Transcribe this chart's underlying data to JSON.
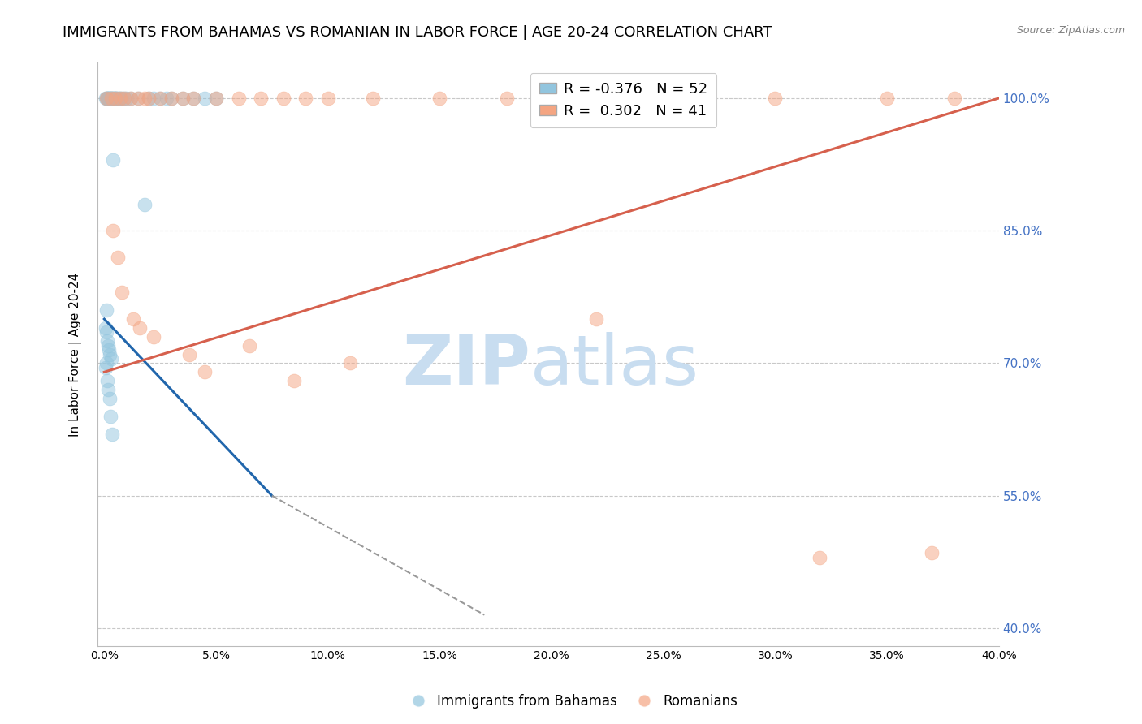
{
  "title": "IMMIGRANTS FROM BAHAMAS VS ROMANIAN IN LABOR FORCE | AGE 20-24 CORRELATION CHART",
  "source": "Source: ZipAtlas.com",
  "ylabel": "In Labor Force | Age 20-24",
  "x_tick_values": [
    0.0,
    5.0,
    10.0,
    15.0,
    20.0,
    25.0,
    30.0,
    35.0,
    40.0
  ],
  "y_tick_values": [
    40.0,
    55.0,
    70.0,
    85.0,
    100.0
  ],
  "xlim": [
    -0.3,
    40.0
  ],
  "ylim": [
    38.0,
    104.0
  ],
  "legend_items": [
    {
      "label": "R = -0.376   N = 52",
      "color": "#92c5de"
    },
    {
      "label": "R =  0.302   N = 41",
      "color": "#f4a582"
    }
  ],
  "legend_bottom": [
    "Immigrants from Bahamas",
    "Romanians"
  ],
  "bahamas_scatter_x": [
    0.05,
    0.1,
    0.12,
    0.15,
    0.18,
    0.2,
    0.22,
    0.25,
    0.28,
    0.3,
    0.32,
    0.35,
    0.38,
    0.4,
    0.42,
    0.45,
    0.48,
    0.5,
    0.55,
    0.6,
    0.65,
    0.7,
    0.8,
    0.9,
    1.0,
    1.2,
    1.5,
    1.8,
    2.0,
    2.2,
    2.5,
    2.8,
    3.0,
    3.5,
    4.0,
    4.5,
    5.0,
    0.08,
    0.06,
    0.11,
    0.14,
    0.17,
    0.21,
    0.26,
    0.33,
    0.09,
    0.07,
    0.13,
    0.16,
    0.23,
    0.29,
    0.36
  ],
  "bahamas_scatter_y": [
    100.0,
    100.0,
    100.0,
    100.0,
    100.0,
    100.0,
    100.0,
    100.0,
    100.0,
    100.0,
    100.0,
    100.0,
    100.0,
    93.0,
    100.0,
    100.0,
    100.0,
    100.0,
    100.0,
    100.0,
    100.0,
    100.0,
    100.0,
    100.0,
    100.0,
    100.0,
    100.0,
    88.0,
    100.0,
    100.0,
    100.0,
    100.0,
    100.0,
    100.0,
    100.0,
    100.0,
    100.0,
    76.0,
    74.0,
    73.5,
    72.5,
    72.0,
    71.5,
    71.0,
    70.5,
    70.0,
    69.5,
    68.0,
    67.0,
    66.0,
    64.0,
    62.0
  ],
  "romanian_scatter_x": [
    0.1,
    0.3,
    0.5,
    0.7,
    0.9,
    1.2,
    1.5,
    1.8,
    2.0,
    2.5,
    3.0,
    3.5,
    4.0,
    5.0,
    6.0,
    7.0,
    8.0,
    9.0,
    10.0,
    12.0,
    15.0,
    18.0,
    20.0,
    25.0,
    30.0,
    35.0,
    38.0,
    0.4,
    0.8,
    1.3,
    2.2,
    3.8,
    6.5,
    11.0,
    0.6,
    1.6,
    4.5,
    8.5,
    22.0,
    32.0,
    37.0
  ],
  "romanian_scatter_y": [
    100.0,
    100.0,
    100.0,
    100.0,
    100.0,
    100.0,
    100.0,
    100.0,
    100.0,
    100.0,
    100.0,
    100.0,
    100.0,
    100.0,
    100.0,
    100.0,
    100.0,
    100.0,
    100.0,
    100.0,
    100.0,
    100.0,
    100.0,
    100.0,
    100.0,
    100.0,
    100.0,
    85.0,
    78.0,
    75.0,
    73.0,
    71.0,
    72.0,
    70.0,
    82.0,
    74.0,
    69.0,
    68.0,
    75.0,
    48.0,
    48.5
  ],
  "bahamas_line_x": [
    0.0,
    7.5
  ],
  "bahamas_line_y": [
    75.0,
    55.0
  ],
  "romanian_line_x": [
    0.0,
    40.0
  ],
  "romanian_line_y": [
    69.0,
    100.0
  ],
  "dash_line_x": [
    7.5,
    17.0
  ],
  "dash_line_y": [
    55.0,
    41.5
  ],
  "scatter_color_bahamas": "#92c5de",
  "scatter_color_romanian": "#f4a582",
  "line_color_bahamas": "#2166ac",
  "line_color_romanian": "#d6604d",
  "watermark_zip": "ZIP",
  "watermark_atlas": "atlas",
  "watermark_color": "#c8ddf0",
  "title_fontsize": 13,
  "axis_label_fontsize": 11,
  "tick_fontsize": 10,
  "right_tick_color": "#4472c4",
  "grid_color": "#c8c8c8"
}
